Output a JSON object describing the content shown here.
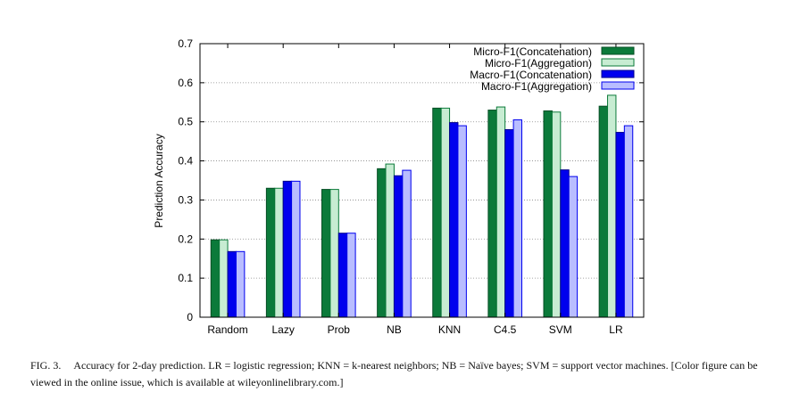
{
  "chart_data": {
    "type": "bar",
    "ylabel": "Prediction Accuracy",
    "ylim": [
      0,
      0.7
    ],
    "yticks": [
      "0",
      "0.1",
      "0.2",
      "0.3",
      "0.4",
      "0.5",
      "0.6",
      "0.7"
    ],
    "categories": [
      "Random",
      "Lazy",
      "Prob",
      "NB",
      "KNN",
      "C4.5",
      "SVM",
      "LR"
    ],
    "grid": "horizontal dotted",
    "legend_position": "top-right",
    "series": [
      {
        "name": "Micro-F1(Concatenation)",
        "color": "#0b7a3a",
        "edge": "#064d24",
        "values": [
          0.198,
          0.33,
          0.327,
          0.38,
          0.535,
          0.53,
          0.528,
          0.54
        ]
      },
      {
        "name": "Micro-F1(Aggregation)",
        "color": "#c7ecd2",
        "edge": "#0b7a3a",
        "values": [
          0.198,
          0.33,
          0.327,
          0.392,
          0.535,
          0.538,
          0.525,
          0.568
        ]
      },
      {
        "name": "Macro-F1(Concatenation)",
        "color": "#0000ee",
        "edge": "#00008b",
        "values": [
          0.168,
          0.348,
          0.215,
          0.362,
          0.498,
          0.48,
          0.377,
          0.473
        ]
      },
      {
        "name": "Macro-F1(Aggregation)",
        "color": "#b9bdff",
        "edge": "#0000ee",
        "values": [
          0.168,
          0.348,
          0.215,
          0.376,
          0.49,
          0.505,
          0.36,
          0.49
        ]
      }
    ]
  },
  "caption": {
    "label": "FIG. 3.",
    "text": "Accuracy for 2-day prediction. LR = logistic regression; KNN = k-nearest neighbors; NB = Naïve bayes; SVM = support vector machines. [Color figure can be viewed in the online issue, which is available at wileyonlinelibrary.com.]"
  }
}
